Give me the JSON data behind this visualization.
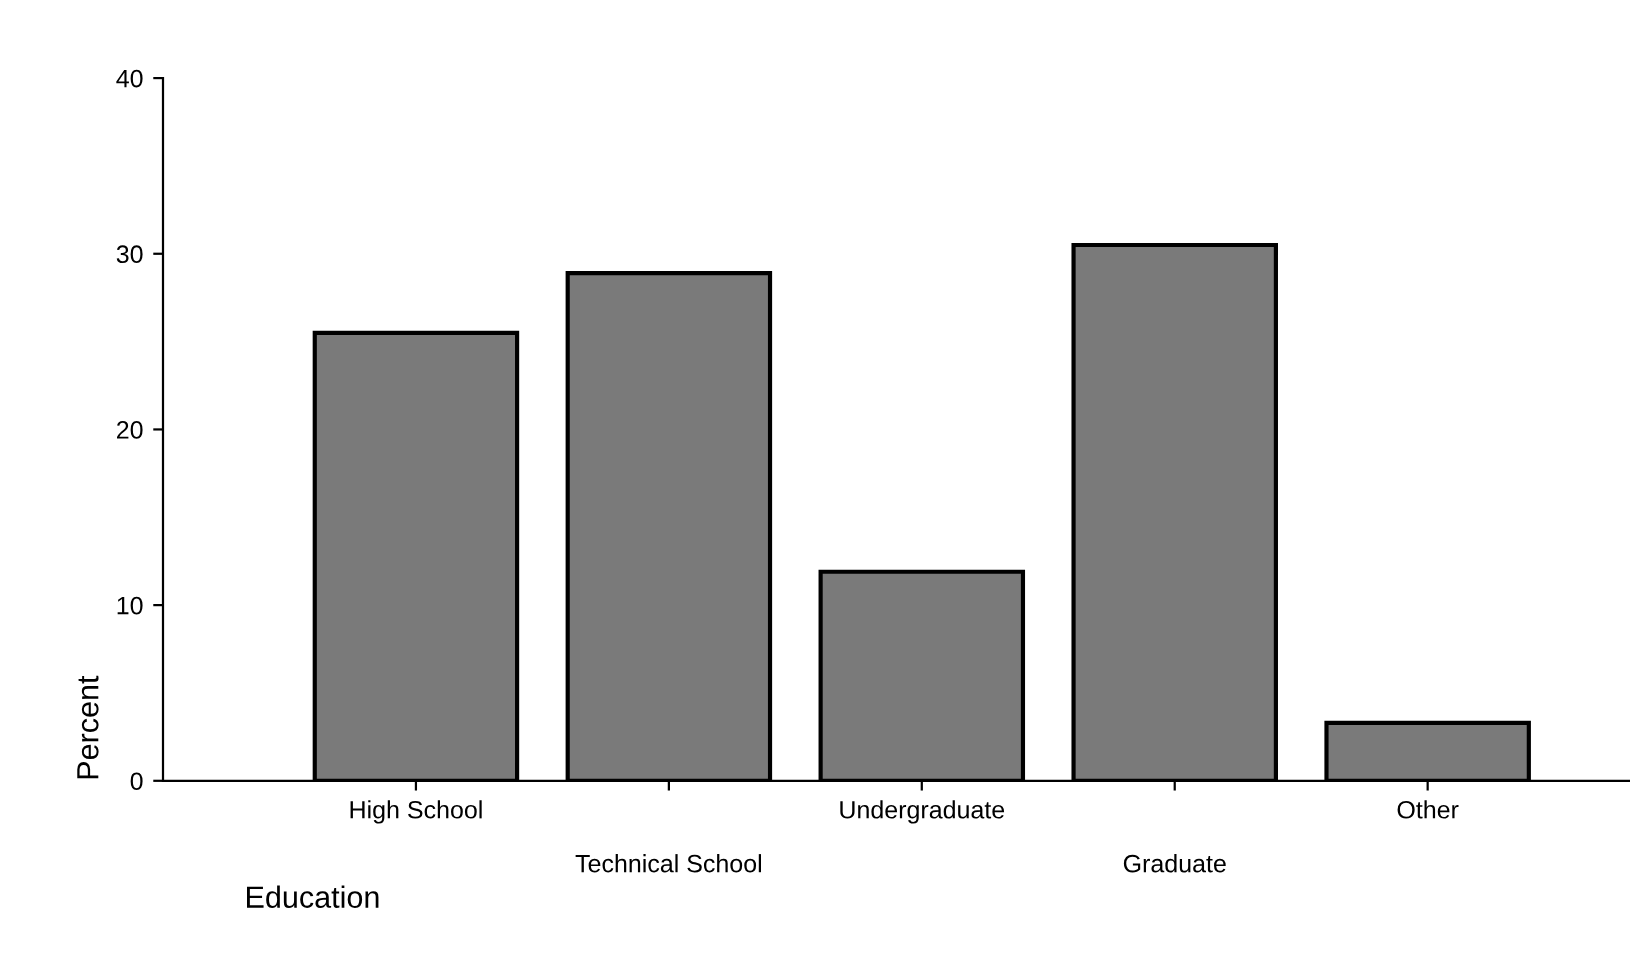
{
  "chart_data": {
    "type": "bar",
    "xlabel": "Education",
    "ylabel": "Percent",
    "categories": [
      "High School",
      "Technical School",
      "Undergraduate",
      "Graduate",
      "Other"
    ],
    "values": [
      25.5,
      28.9,
      11.9,
      30.5,
      3.3
    ],
    "color": "#7a7a7a",
    "ylim": [
      0,
      40
    ],
    "yticks": [
      0,
      10,
      20,
      30,
      40
    ],
    "grid": false,
    "legend": false
  }
}
